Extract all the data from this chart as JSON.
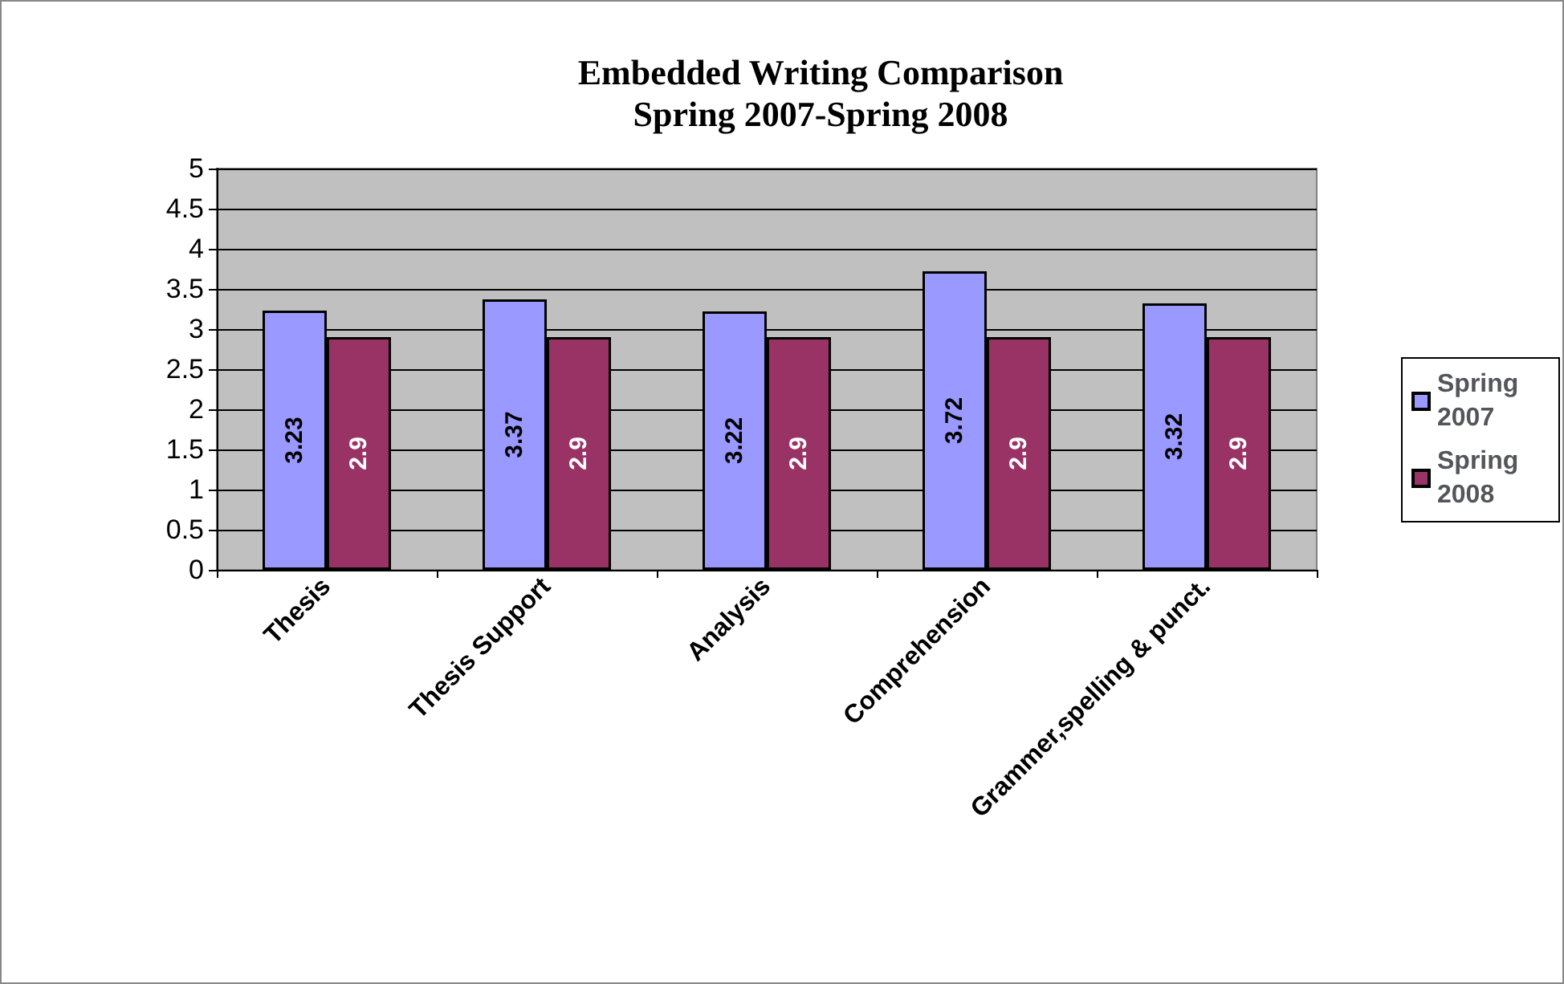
{
  "chart_data": {
    "type": "bar",
    "title": "Embedded Writing Comparison",
    "subtitle": "Spring 2007-Spring 2008",
    "categories": [
      "Thesis",
      "Thesis Support",
      "Analysis",
      "Comprehension",
      "Grammer,spelling & punct."
    ],
    "series": [
      {
        "name": "Spring 2007",
        "color": "#9999ff",
        "values": [
          3.23,
          3.37,
          3.22,
          3.72,
          3.32
        ]
      },
      {
        "name": "Spring 2008",
        "color": "#993366",
        "values": [
          2.9,
          2.9,
          2.9,
          2.9,
          2.9
        ]
      }
    ],
    "ylim": [
      0,
      5
    ],
    "yticks": [
      0,
      0.5,
      1,
      1.5,
      2,
      2.5,
      3,
      3.5,
      4,
      4.5,
      5
    ],
    "grid": "y",
    "legend": "right",
    "data_labels": true
  }
}
